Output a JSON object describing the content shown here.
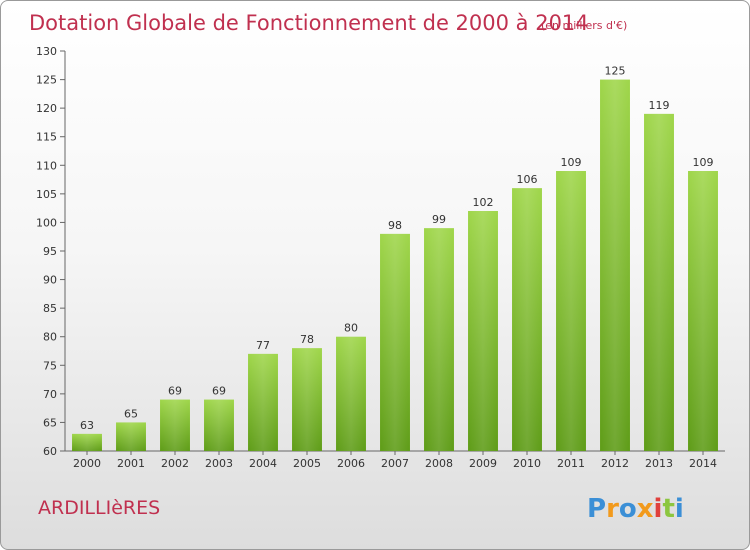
{
  "chart_data": {
    "type": "bar",
    "title": "Dotation Globale de Fonctionnement de 2000 à 2014",
    "subtitle": "(en milliers d'€)",
    "xlabel": "",
    "ylabel": "",
    "categories": [
      "2000",
      "2001",
      "2002",
      "2003",
      "2004",
      "2005",
      "2006",
      "2007",
      "2008",
      "2009",
      "2010",
      "2011",
      "2012",
      "2013",
      "2014"
    ],
    "values": [
      63,
      65,
      69,
      69,
      77,
      78,
      80,
      98,
      99,
      102,
      106,
      109,
      125,
      119,
      109
    ],
    "ylim": [
      60,
      130
    ],
    "yticks": [
      60,
      65,
      70,
      75,
      80,
      85,
      90,
      95,
      100,
      105,
      110,
      115,
      120,
      125,
      130
    ],
    "grid": false,
    "bar_color": "#7fbe2a"
  },
  "footer": {
    "place": "ARDILLIèRES",
    "logo_letters": [
      "P",
      "r",
      "o",
      "x",
      "i",
      "t",
      "i"
    ],
    "logo_colors": [
      "#3b8fd6",
      "#f29a1c",
      "#3b8fd6",
      "#f29a1c",
      "#e0403c",
      "#8cc63f",
      "#3b8fd6"
    ]
  }
}
